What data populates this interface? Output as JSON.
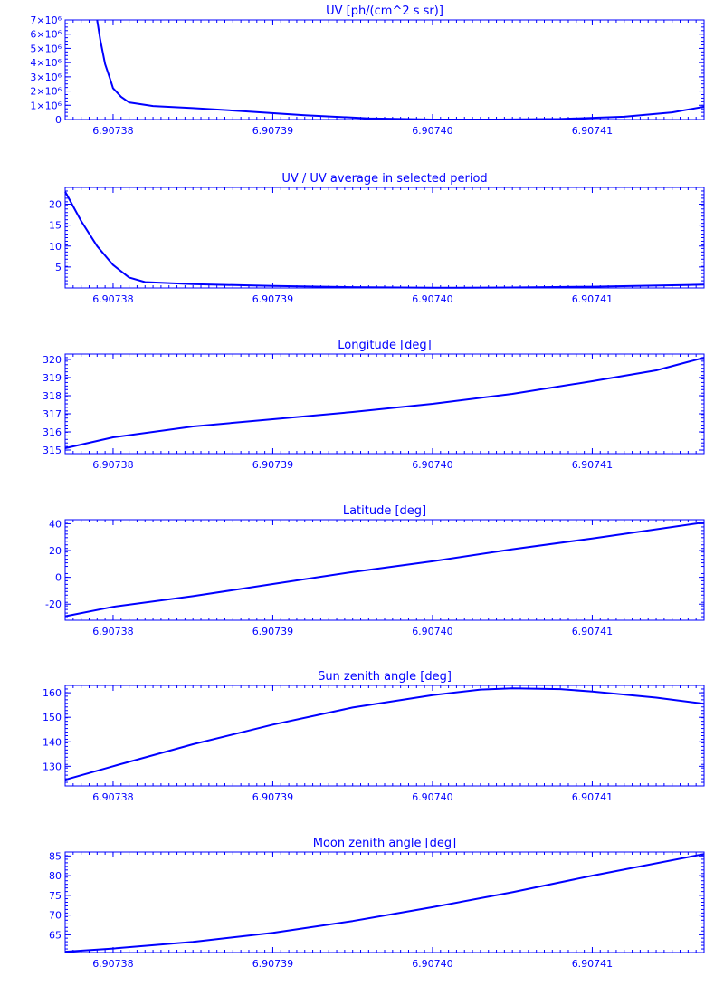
{
  "style": {
    "line_color": "#0000ff",
    "background": "#ffffff"
  },
  "chart_data": [
    {
      "type": "line",
      "title": "UV [ph/(cm^2 s sr)]",
      "x_ticks": [
        "6.90738",
        "6.90739",
        "6.90740",
        "6.90741"
      ],
      "y_ticks": [
        "7×10⁶",
        "6×10⁶",
        "5×10⁶",
        "4×10⁶",
        "3×10⁶",
        "2×10⁶",
        "1×10⁶",
        "0"
      ],
      "y_tick_values": [
        7000000,
        6000000,
        5000000,
        4000000,
        3000000,
        2000000,
        1000000,
        0
      ],
      "ylim": [
        0,
        7000000
      ],
      "x_range": [
        6.907377,
        6.907417
      ],
      "series": [
        {
          "x": [
            6.907379,
            6.9073792,
            6.9073795,
            6.9073798,
            6.90738,
            6.9073805,
            6.907381,
            6.9073825,
            6.907385,
            6.907388,
            6.907392,
            6.907396,
            6.9074,
            6.907404,
            6.907408,
            6.907412,
            6.907415,
            6.907417
          ],
          "y": [
            7000000,
            5600000,
            3900000,
            2900000,
            2200000,
            1600000,
            1200000,
            950000,
            800000,
            600000,
            300000,
            80000,
            0,
            0,
            40000,
            200000,
            500000,
            900000
          ]
        }
      ]
    },
    {
      "type": "line",
      "title": "UV / UV average in selected period",
      "x_ticks": [
        "6.90738",
        "6.90739",
        "6.90740",
        "6.90741"
      ],
      "y_ticks": [
        "20",
        "15",
        "10",
        "5"
      ],
      "y_tick_values": [
        20,
        15,
        10,
        5
      ],
      "ylim": [
        0,
        24
      ],
      "x_range": [
        6.907377,
        6.907417
      ],
      "series": [
        {
          "x": [
            6.907377,
            6.907378,
            6.907379,
            6.90738,
            6.907381,
            6.907382,
            6.907385,
            6.90739,
            6.907395,
            6.9074,
            6.907405,
            6.90741,
            6.907417
          ],
          "y": [
            23,
            16,
            10,
            5.5,
            2.5,
            1.4,
            0.9,
            0.5,
            0.2,
            0.05,
            0.1,
            0.3,
            0.8
          ]
        }
      ]
    },
    {
      "type": "line",
      "title": "Longitude [deg]",
      "x_ticks": [
        "6.90738",
        "6.90739",
        "6.90740",
        "6.90741"
      ],
      "y_ticks": [
        "320",
        "319",
        "318",
        "317",
        "316",
        "315"
      ],
      "y_tick_values": [
        320,
        319,
        318,
        317,
        316,
        315
      ],
      "ylim": [
        314.8,
        320.3
      ],
      "x_range": [
        6.907377,
        6.907417
      ],
      "series": [
        {
          "x": [
            6.907377,
            6.907378,
            6.90738,
            6.907385,
            6.90739,
            6.907395,
            6.9074,
            6.907405,
            6.90741,
            6.907414,
            6.907417
          ],
          "y": [
            315.1,
            315.3,
            315.7,
            316.3,
            316.7,
            317.1,
            317.55,
            318.1,
            318.8,
            319.4,
            320.1
          ]
        }
      ]
    },
    {
      "type": "line",
      "title": "Latitude [deg]",
      "x_ticks": [
        "6.90738",
        "6.90739",
        "6.90740",
        "6.90741"
      ],
      "y_ticks": [
        "40",
        "20",
        "0",
        "-20"
      ],
      "y_tick_values": [
        40,
        20,
        0,
        -20
      ],
      "ylim": [
        -32,
        43
      ],
      "x_range": [
        6.907377,
        6.907417
      ],
      "series": [
        {
          "x": [
            6.907377,
            6.90738,
            6.907385,
            6.90739,
            6.907395,
            6.9074,
            6.907405,
            6.90741,
            6.907417
          ],
          "y": [
            -29,
            -22,
            -14,
            -5,
            4,
            12,
            21,
            29,
            41
          ]
        }
      ]
    },
    {
      "type": "line",
      "title": "Sun zenith angle [deg]",
      "x_ticks": [
        "6.90738",
        "6.90739",
        "6.90740",
        "6.90741"
      ],
      "y_ticks": [
        "160",
        "150",
        "140",
        "130"
      ],
      "y_tick_values": [
        160,
        150,
        140,
        130
      ],
      "ylim": [
        122,
        163
      ],
      "x_range": [
        6.907377,
        6.907417
      ],
      "series": [
        {
          "x": [
            6.907377,
            6.90738,
            6.907385,
            6.90739,
            6.907395,
            6.9074,
            6.907403,
            6.907405,
            6.907408,
            6.90741,
            6.907414,
            6.907417
          ],
          "y": [
            124.5,
            130,
            139,
            147,
            154,
            159,
            161.3,
            161.8,
            161.5,
            160.5,
            158,
            155.5
          ]
        }
      ]
    },
    {
      "type": "line",
      "title": "Moon zenith angle [deg]",
      "x_ticks": [
        "6.90738",
        "6.90739",
        "6.90740",
        "6.90741"
      ],
      "y_ticks": [
        "85",
        "80",
        "75",
        "70",
        "65"
      ],
      "y_tick_values": [
        85,
        80,
        75,
        70,
        65
      ],
      "ylim": [
        60.5,
        86
      ],
      "x_range": [
        6.907377,
        6.907417
      ],
      "series": [
        {
          "x": [
            6.907377,
            6.90738,
            6.907385,
            6.90739,
            6.907395,
            6.9074,
            6.907405,
            6.90741,
            6.907417
          ],
          "y": [
            60.7,
            61.5,
            63.2,
            65.5,
            68.5,
            72,
            75.8,
            80,
            85.5
          ]
        }
      ]
    }
  ]
}
